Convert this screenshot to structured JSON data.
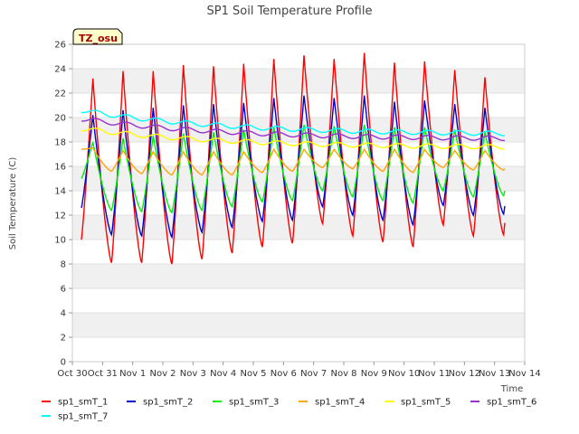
{
  "chart_data": {
    "type": "line",
    "title": "SP1 Soil Temperature Profile",
    "xlabel": "Time",
    "ylabel": "Soil Temperature (C)",
    "badge": "TZ_osu",
    "ylim": [
      0,
      26
    ],
    "yticks": [
      0,
      2,
      4,
      6,
      8,
      10,
      12,
      14,
      16,
      18,
      20,
      22,
      24,
      26
    ],
    "xlim": [
      0,
      15
    ],
    "xticks": [
      "Oct 30",
      "Oct 31",
      "Nov 1",
      "Nov 2",
      "Nov 3",
      "Nov 4",
      "Nov 5",
      "Nov 6",
      "Nov 7",
      "Nov 8",
      "Nov 9",
      "Nov 10",
      "Nov 11",
      "Nov 12",
      "Nov 13",
      "Nov 14"
    ],
    "grid": "horizontal bands",
    "legend": "bottom",
    "series": [
      {
        "name": "sp1_smT_1",
        "color": "#ff0000",
        "min": [
          10.0,
          8.1,
          8.1,
          8.0,
          8.4,
          8.9,
          9.4,
          9.7,
          11.3,
          10.3,
          9.8,
          9.4,
          11.2,
          10.3,
          10.4,
          12.9
        ],
        "max": [
          23.2,
          23.8,
          23.8,
          24.3,
          24.2,
          24.4,
          24.8,
          25.1,
          24.8,
          25.3,
          24.5,
          24.6,
          23.9,
          23.3
        ]
      },
      {
        "name": "sp1_smT_2",
        "color": "#0000cc",
        "min": [
          12.6,
          10.4,
          10.3,
          10.2,
          10.6,
          11.0,
          11.5,
          11.6,
          12.7,
          12.0,
          11.6,
          11.2,
          12.8,
          12.0,
          12.1,
          14.4
        ],
        "max": [
          20.2,
          20.6,
          20.8,
          21.0,
          21.1,
          21.2,
          21.6,
          21.8,
          21.6,
          21.8,
          21.3,
          21.4,
          21.1,
          20.8
        ]
      },
      {
        "name": "sp1_smT_3",
        "color": "#00ee00",
        "min": [
          15.0,
          12.4,
          12.3,
          12.2,
          12.4,
          12.7,
          13.1,
          13.2,
          14.0,
          13.5,
          13.2,
          13.0,
          14.0,
          13.5,
          13.6,
          16.0
        ],
        "max": [
          18.0,
          18.3,
          18.5,
          18.7,
          18.8,
          19.0,
          19.2,
          19.4,
          19.3,
          19.4,
          19.2,
          19.2,
          19.0,
          18.8
        ]
      },
      {
        "name": "sp1_smT_4",
        "color": "#ffa500",
        "min": [
          17.4,
          15.6,
          15.4,
          15.3,
          15.3,
          15.3,
          15.5,
          15.6,
          15.9,
          15.8,
          15.6,
          15.5,
          15.9,
          15.7,
          15.7,
          16.9
        ],
        "max": [
          17.5,
          17.3,
          17.2,
          17.2,
          17.2,
          17.2,
          17.4,
          17.4,
          17.4,
          17.4,
          17.4,
          17.4,
          17.3,
          17.3
        ]
      },
      {
        "name": "sp1_smT_5",
        "color": "#ffff00",
        "start": 19.1,
        "end": 17.6
      },
      {
        "name": "sp1_smT_6",
        "color": "#9932cc",
        "start": 19.9,
        "end": 18.3
      },
      {
        "name": "sp1_smT_7",
        "color": "#00ffff",
        "start": 20.6,
        "end": 18.7
      }
    ]
  }
}
